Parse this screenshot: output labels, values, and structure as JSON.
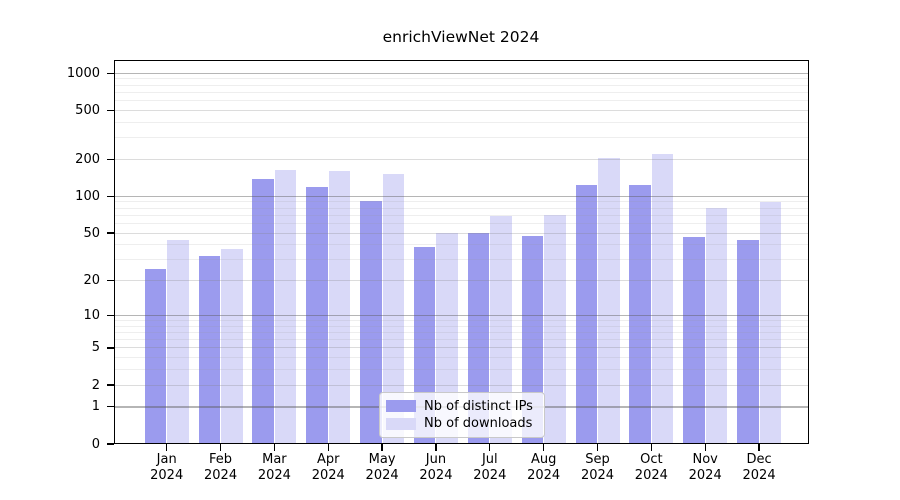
{
  "title": "enrichViewNet 2024",
  "axes": {
    "y_tick_labels": [
      "1000",
      "500",
      "200",
      "100",
      "50",
      "20",
      "10",
      "5",
      "2",
      "1",
      "0"
    ],
    "y_tick_values": [
      1000,
      500,
      200,
      100,
      50,
      20,
      10,
      5,
      2,
      1,
      0
    ],
    "y_major_values": [
      1000,
      100,
      10,
      1
    ],
    "x_year": "2024"
  },
  "colors": {
    "distinct_ips_bar": "#9b9bee",
    "downloads_bar": "#d9d9f8",
    "axis": "#000000",
    "background": "#ffffff"
  },
  "legend": {
    "items": [
      {
        "label": "Nb of distinct IPs",
        "color": "#9b9bee"
      },
      {
        "label": "Nb of downloads",
        "color": "#d9d9f8"
      }
    ]
  },
  "chart_data": {
    "type": "bar",
    "title": "enrichViewNet 2024",
    "categories": [
      "Jan",
      "Feb",
      "Mar",
      "Apr",
      "May",
      "Jun",
      "Jul",
      "Aug",
      "Sep",
      "Oct",
      "Nov",
      "Dec"
    ],
    "category_year": "2024",
    "series": [
      {
        "name": "Nb of distinct IPs",
        "color": "#9b9bee",
        "values": [
          25,
          32,
          138,
          119,
          92,
          38,
          50,
          47,
          125,
          125,
          46,
          44
        ]
      },
      {
        "name": "Nb of downloads",
        "color": "#d9d9f8",
        "values": [
          44,
          37,
          163,
          161,
          151,
          50,
          69,
          70,
          206,
          221,
          81,
          90
        ]
      }
    ],
    "xlabel": "",
    "ylabel": "",
    "yscale": "symlog",
    "y_ticks": [
      0,
      1,
      2,
      5,
      10,
      20,
      50,
      100,
      200,
      500,
      1000
    ],
    "ylim": [
      0,
      1300
    ],
    "grid": true,
    "legend_position": "bottom-center"
  }
}
